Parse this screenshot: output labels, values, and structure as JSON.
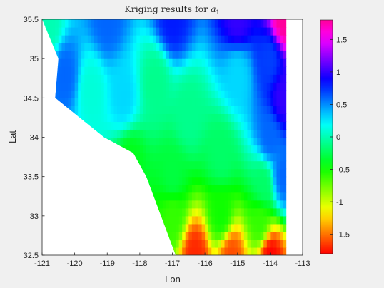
{
  "chart_data": {
    "type": "heatmap",
    "title": "Kriging results for a₁",
    "title_text": "Kriging results for ",
    "title_var": "a",
    "title_sub": "1",
    "xlabel": "Lon",
    "ylabel": "Lat",
    "xlim": [
      -121,
      -113
    ],
    "ylim": [
      32.5,
      35.5
    ],
    "xticks": [
      -121,
      -120,
      -119,
      -118,
      -117,
      -116,
      -115,
      -114,
      -113
    ],
    "xtick_labels": [
      "-121",
      "-120",
      "-119",
      "-118",
      "-117",
      "-116",
      "-115",
      "-114",
      "-113"
    ],
    "yticks": [
      32.5,
      33,
      33.5,
      34,
      34.5,
      35,
      35.5
    ],
    "ytick_labels": [
      "32.5",
      "33",
      "33.5",
      "34",
      "34.5",
      "35",
      "35.5"
    ],
    "colorbar": {
      "clim": [
        -1.8,
        1.8
      ],
      "ticks": [
        1.5,
        1,
        0.5,
        0,
        -0.5,
        -1,
        -1.5
      ],
      "tick_labels": [
        "1.5",
        "1",
        "0.5",
        "0",
        "-0.5",
        "-1",
        "-1.5"
      ],
      "colormap": "hsv"
    },
    "data_region_boundary": [
      [
        -121,
        35.5
      ],
      [
        -113.5,
        35.5
      ],
      [
        -113.5,
        32.5
      ],
      [
        -116.9,
        32.5
      ],
      [
        -117.8,
        33.5
      ],
      [
        -118.2,
        33.8
      ],
      [
        -119.1,
        34.0
      ],
      [
        -120.6,
        34.5
      ],
      [
        -120.5,
        35.0
      ]
    ],
    "field_samples": [
      {
        "lon": -120.8,
        "lat": 35.4,
        "value": 0.0
      },
      {
        "lon": -120.3,
        "lat": 34.8,
        "value": 0.6
      },
      {
        "lon": -119.5,
        "lat": 34.6,
        "value": 0.1
      },
      {
        "lon": -118.5,
        "lat": 34.5,
        "value": 0.3
      },
      {
        "lon": -117.5,
        "lat": 34.7,
        "value": -0.1
      },
      {
        "lon": -116.5,
        "lat": 34.3,
        "value": -0.1
      },
      {
        "lon": -115.0,
        "lat": 34.8,
        "value": 0.3
      },
      {
        "lon": -114.0,
        "lat": 35.0,
        "value": 0.7
      },
      {
        "lon": -114.0,
        "lat": 34.0,
        "value": 0.6
      },
      {
        "lon": -118.3,
        "lat": 33.7,
        "value": -0.4
      },
      {
        "lon": -117.0,
        "lat": 33.5,
        "value": -0.3
      },
      {
        "lon": -115.5,
        "lat": 33.8,
        "value": -0.2
      },
      {
        "lon": -114.2,
        "lat": 33.4,
        "value": -0.2
      },
      {
        "lon": -117.0,
        "lat": 33.0,
        "value": -0.6
      },
      {
        "lon": -115.5,
        "lat": 33.0,
        "value": -0.5
      },
      {
        "lon": -114.3,
        "lat": 32.9,
        "value": -0.6
      },
      {
        "lon": -116.3,
        "lat": 32.5,
        "value": -1.7
      },
      {
        "lon": -115.2,
        "lat": 32.5,
        "value": -1.6
      },
      {
        "lon": -114.0,
        "lat": 32.5,
        "value": -1.8
      },
      {
        "lon": -119.0,
        "lat": 35.5,
        "value": 0.6
      },
      {
        "lon": -117.0,
        "lat": 35.5,
        "value": 0.8
      },
      {
        "lon": -115.0,
        "lat": 35.5,
        "value": 1.0
      },
      {
        "lon": -113.6,
        "lat": 35.5,
        "value": 1.8
      },
      {
        "lon": -113.6,
        "lat": 34.5,
        "value": 1.0
      },
      {
        "lon": -113.6,
        "lat": 33.5,
        "value": 0.6
      }
    ]
  }
}
